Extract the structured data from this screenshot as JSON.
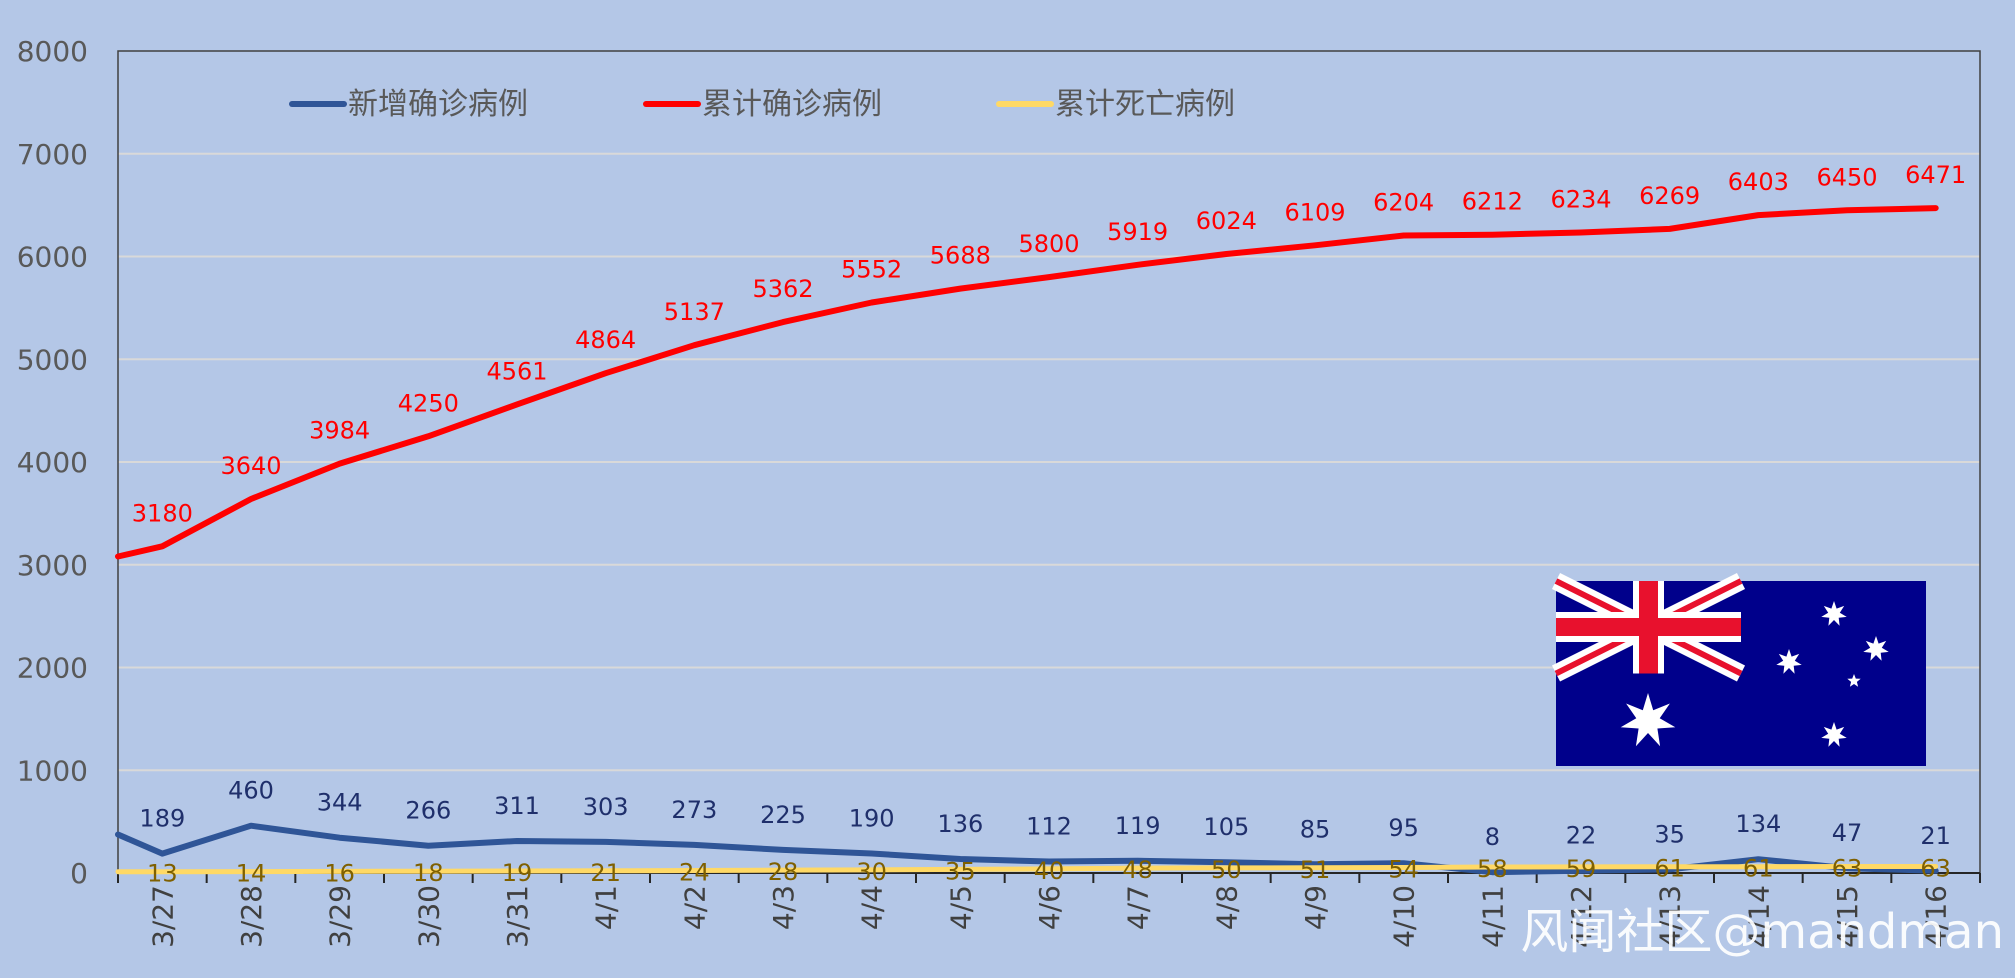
{
  "colors": {
    "background": "#b4c7e7",
    "new_cases": "#2f5597",
    "cumulative_cases": "#ff0000",
    "cumulative_deaths": "#ffd966",
    "new_label": "#1f2f6b",
    "cum_label": "#ff0000",
    "death_label": "#7f6000",
    "flag_blue": "#00008b"
  },
  "watermark": "风闻社区@mandman",
  "flag": {
    "name": "australia-flag"
  },
  "chart_data": {
    "type": "line",
    "categories": [
      "3/27",
      "3/28",
      "3/29",
      "3/30",
      "3/31",
      "4/1",
      "4/2",
      "4/3",
      "4/4",
      "4/5",
      "4/6",
      "4/7",
      "4/8",
      "4/9",
      "4/10",
      "4/11",
      "4/12",
      "4/13",
      "4/14",
      "4/15",
      "4/16"
    ],
    "ylim": [
      0,
      8000
    ],
    "yticks": [
      0,
      1000,
      2000,
      3000,
      4000,
      5000,
      6000,
      7000,
      8000
    ],
    "grid": true,
    "legend_position": "top",
    "series": [
      {
        "name": "新增确诊病例",
        "key": "new_cases",
        "start_value": 375,
        "values": [
          189,
          460,
          344,
          266,
          311,
          303,
          273,
          225,
          190,
          136,
          112,
          119,
          105,
          85,
          95,
          8,
          22,
          35,
          134,
          47,
          21
        ]
      },
      {
        "name": "累计确诊病例",
        "key": "cumulative_cases",
        "start_value": 3080,
        "values": [
          3180,
          3640,
          3984,
          4250,
          4561,
          4864,
          5137,
          5362,
          5552,
          5688,
          5800,
          5919,
          6024,
          6109,
          6204,
          6212,
          6234,
          6269,
          6403,
          6450,
          6471
        ]
      },
      {
        "name": "累计死亡病例",
        "key": "cumulative_deaths",
        "start_value": 13,
        "values": [
          13,
          14,
          16,
          18,
          19,
          21,
          24,
          28,
          30,
          35,
          40,
          48,
          50,
          51,
          54,
          58,
          59,
          61,
          61,
          63,
          63
        ]
      }
    ]
  }
}
